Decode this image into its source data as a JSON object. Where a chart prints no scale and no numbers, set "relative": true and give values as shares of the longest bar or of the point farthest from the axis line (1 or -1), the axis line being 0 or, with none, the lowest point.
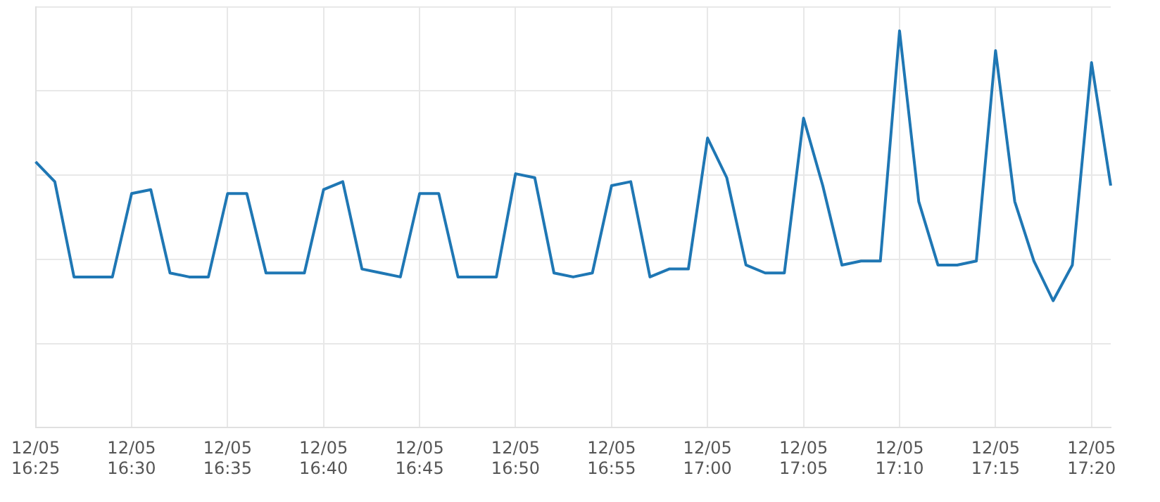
{
  "chart_data": {
    "type": "line",
    "relative": true,
    "grid": true,
    "legend": false,
    "marker": "none",
    "line_style": "solid",
    "categories": [
      "12/05 16:25",
      null,
      null,
      null,
      null,
      "12/05 16:30",
      null,
      null,
      null,
      null,
      "12/05 16:35",
      null,
      null,
      null,
      null,
      "12/05 16:40",
      null,
      null,
      null,
      null,
      "12/05 16:45",
      null,
      null,
      null,
      null,
      "12/05 16:50",
      null,
      null,
      null,
      null,
      "12/05 16:55",
      null,
      null,
      null,
      null,
      "12/05 17:00",
      null,
      null,
      null,
      null,
      "12/05 17:05",
      null,
      null,
      null,
      null,
      "12/05 17:10",
      null,
      null,
      null,
      null,
      "12/05 17:15",
      null,
      null,
      null,
      null,
      "12/05 17:20",
      null
    ],
    "series": [
      {
        "color": "#1f77b4",
        "values": [
          0.67,
          0.62,
          0.38,
          0.38,
          0.38,
          0.59,
          0.6,
          0.39,
          0.38,
          0.38,
          0.59,
          0.59,
          0.39,
          0.39,
          0.39,
          0.6,
          0.62,
          0.4,
          0.39,
          0.38,
          0.59,
          0.59,
          0.38,
          0.38,
          0.38,
          0.64,
          0.63,
          0.39,
          0.38,
          0.39,
          0.61,
          0.62,
          0.38,
          0.4,
          0.4,
          0.73,
          0.63,
          0.41,
          0.39,
          0.39,
          0.78,
          0.61,
          0.41,
          0.42,
          0.42,
          1,
          0.57,
          0.41,
          0.41,
          0.42,
          0.95,
          0.57,
          0.42,
          0.32,
          0.41,
          0.92,
          0.61
        ]
      }
    ]
  }
}
